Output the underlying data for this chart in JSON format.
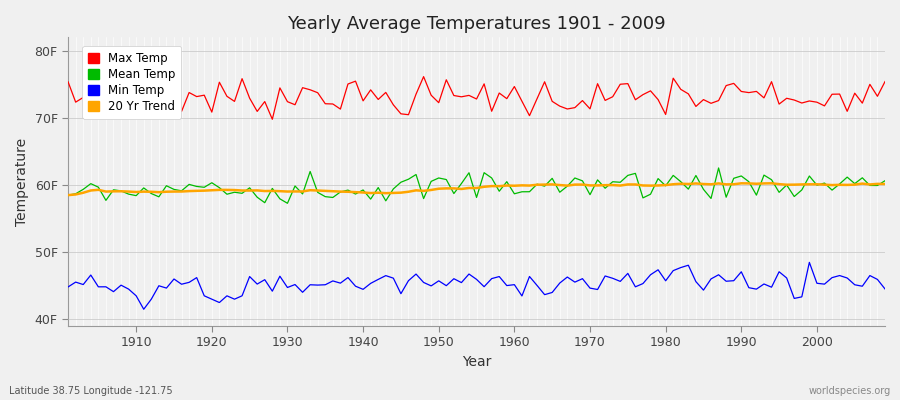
{
  "title": "Yearly Average Temperatures 1901 - 2009",
  "xlabel": "Year",
  "ylabel": "Temperature",
  "lat_lon_label": "Latitude 38.75 Longitude -121.75",
  "watermark": "worldspecies.org",
  "years_start": 1901,
  "years_end": 2009,
  "yticks": [
    40,
    50,
    60,
    70,
    80
  ],
  "ytick_labels": [
    "40F",
    "50F",
    "60F",
    "70F",
    "80F"
  ],
  "ylim": [
    39,
    82
  ],
  "xlim": [
    1901,
    2009
  ],
  "fig_bg_color": "#f0f0f0",
  "plot_bg_color": "#f0f0f0",
  "colors": {
    "max": "#ff0000",
    "mean": "#00bb00",
    "min": "#0000ff",
    "trend": "#ffa500"
  },
  "legend_labels": [
    "Max Temp",
    "Mean Temp",
    "Min Temp",
    "20 Yr Trend"
  ],
  "title_fontsize": 13,
  "axis_label_fontsize": 9,
  "tick_fontsize": 9
}
